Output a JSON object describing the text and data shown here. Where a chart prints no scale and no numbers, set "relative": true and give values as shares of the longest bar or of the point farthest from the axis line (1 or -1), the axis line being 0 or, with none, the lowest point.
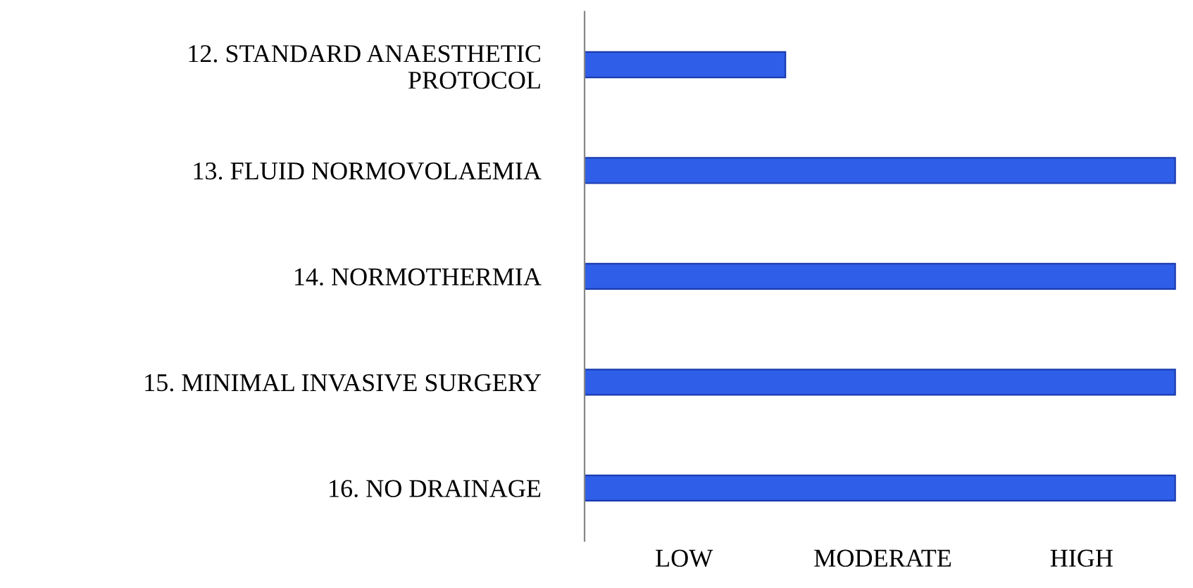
{
  "chart_data": {
    "type": "bar",
    "orientation": "horizontal",
    "relative": true,
    "categories": [
      "12. STANDARD ANAESTHETIC PROTOCOL",
      "13. FLUID NORMOVOLAEMIA",
      "14. NORMOTHERMIA",
      "15. MINIMAL INVASIVE SURGERY",
      "16. NO DRAINAGE"
    ],
    "values": [
      0.34,
      1,
      1,
      1,
      1
    ],
    "color": "#2f5ee8",
    "annotations": [
      "LOW",
      "MODERATE",
      "HIGH"
    ],
    "grid": false,
    "legend": false
  }
}
